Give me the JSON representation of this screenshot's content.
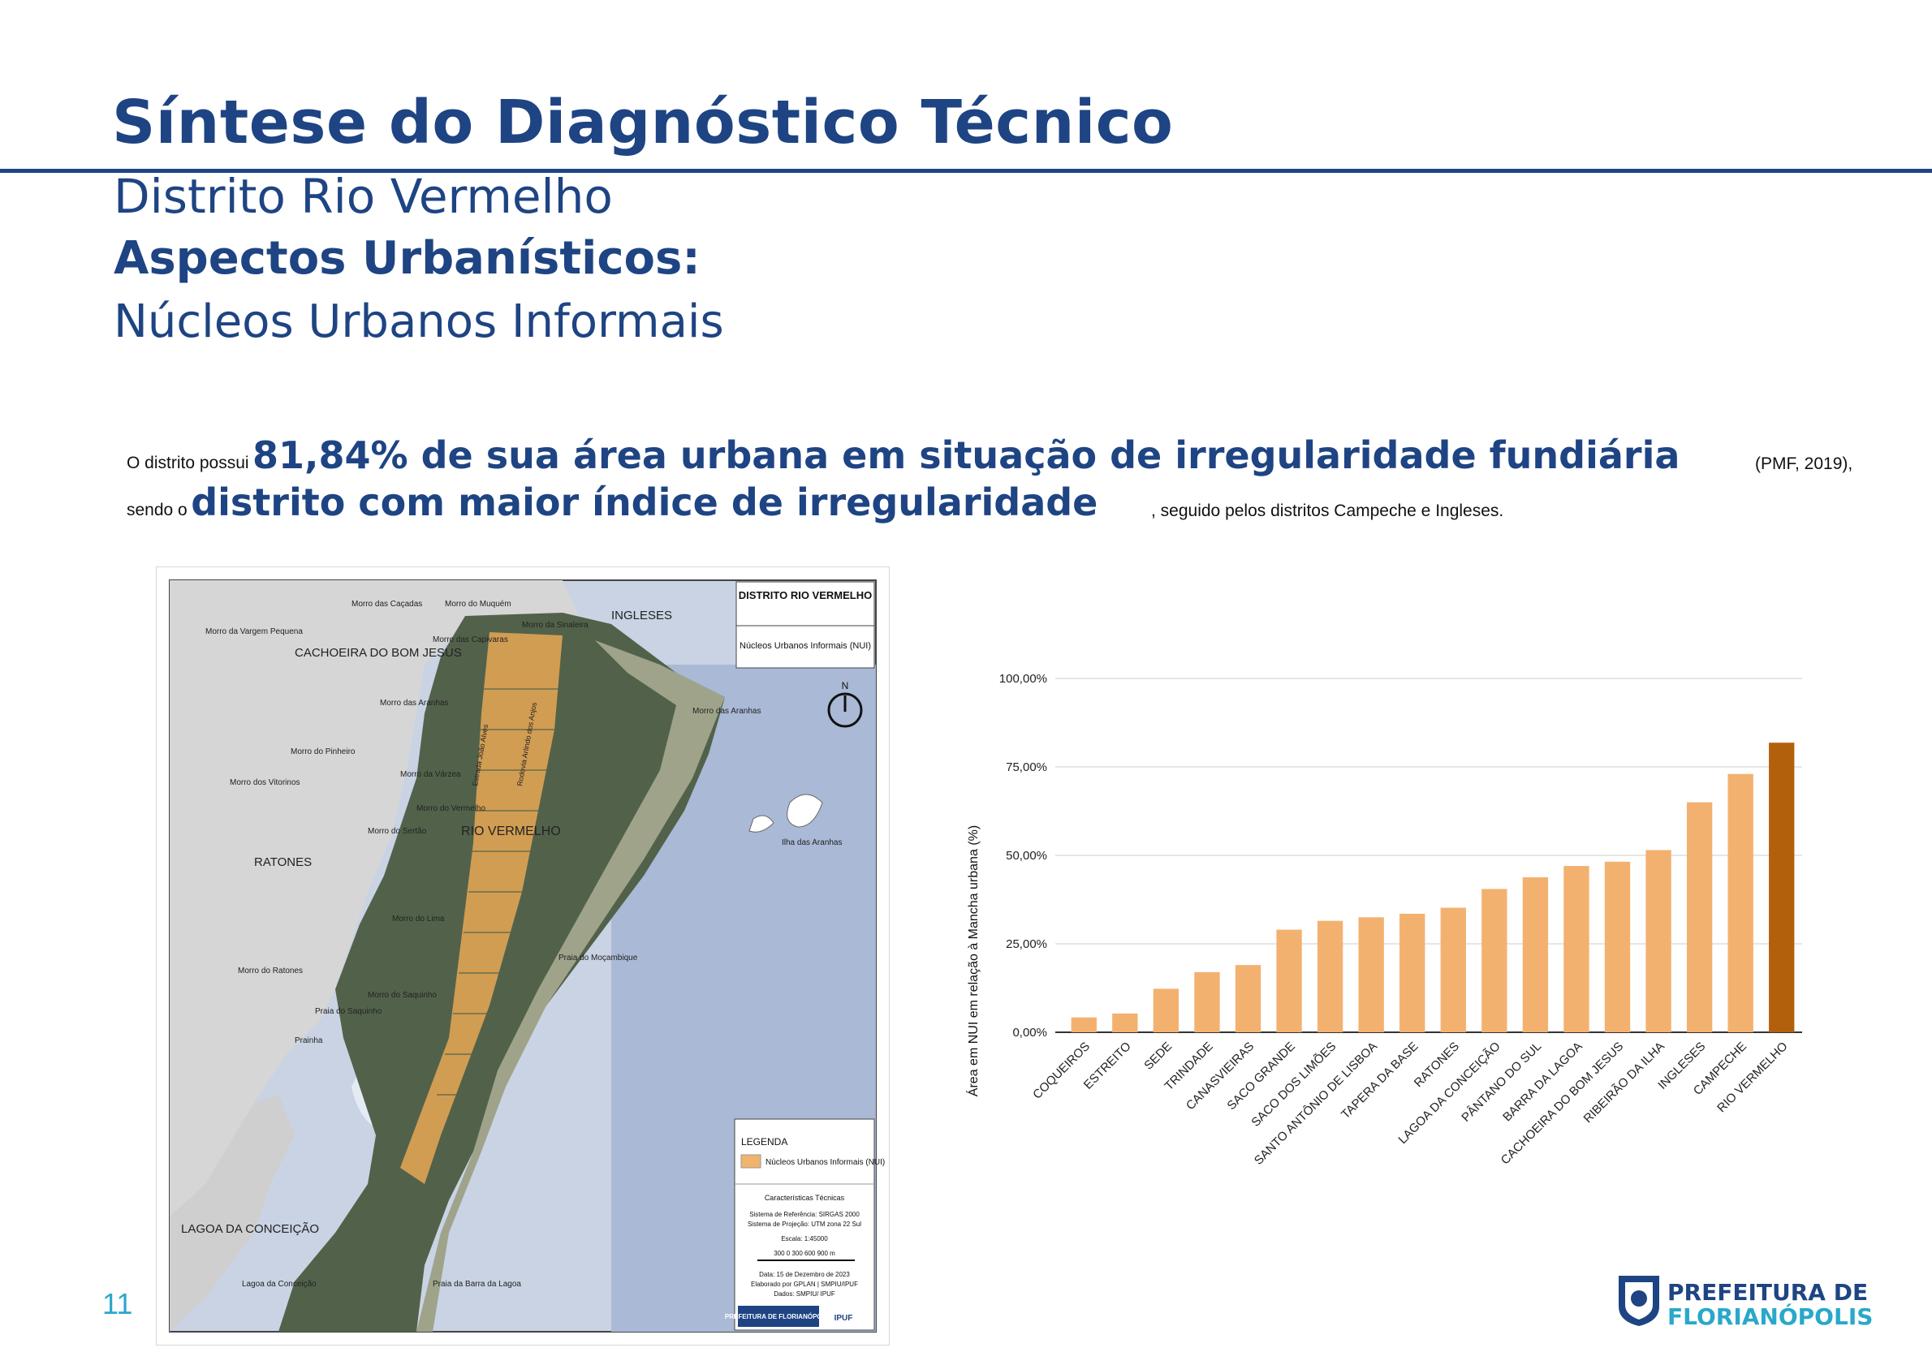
{
  "header": {
    "title": "Síntese do Diagnóstico Técnico",
    "district": "Distrito Rio Vermelho",
    "section": "Aspectos Urbanísticos:",
    "topic": "Núcleos Urbanos Informais"
  },
  "intro": {
    "p1_small": "O distrito possui",
    "p1_big": "81,84% de sua área urbana em situação de irregularidade fundiária",
    "p1_ref": "(PMF, 2019),",
    "p2_small": "sendo o",
    "p2_big": "distrito com maior índice de irregularidade",
    "p2_tail": ", seguido pelos distritos Campeche e Ingleses."
  },
  "map": {
    "panel_title": "DISTRITO RIO VERMELHO",
    "panel_subtitle": "Núcleos Urbanos Informais (NUI)",
    "north": "N",
    "legend_title": "LEGENDA",
    "legend_item": "Núcleos Urbanos Informais (NUI)",
    "tech_title": "Características Técnicas",
    "tech_ref": "Sistema de Referência: SIRGAS 2000",
    "tech_proj": "Sistema de Projeção: UTM zona 22 Sul",
    "tech_scale": "Escala: 1:45000",
    "scale_ticks": "300   0   300  600  900 m",
    "tech_date": "Data: 15 de Dezembro de 2023",
    "tech_by": "Elaborado por GPLAN | SMPIU/IPUF",
    "tech_data": "Dados: SMPIU/ IPUF",
    "logo1": "PREFEITURA DE FLORIANÓPOLIS",
    "logo2": "IPUF",
    "labels": {
      "ingleses": "INGLESES",
      "cachoeira": "CACHOEIRA DO BOM JESUS",
      "rio_vermelho": "RIO VERMELHO",
      "ratones": "RATONES",
      "lagoa": "LAGOA DA CONCEIÇÃO",
      "morro_cacadas": "Morro das Caçadas",
      "morro_muquem": "Morro do Muquém",
      "morro_sinaleira": "Morro da Sinaleira",
      "morro_vargem": "Morro da Vargem Pequena",
      "morro_capivaras": "Morro das Capivaras",
      "morro_aranhas": "Morro das Aranhas",
      "morro_aranhas2": "Morro das Aranhas",
      "morro_pinheiro": "Morro do Pinheiro",
      "morro_vitorinos": "Morro dos Vitorinos",
      "morro_varzea": "Morro da Várzea",
      "morro_vermelho": "Morro do Vermelho",
      "morro_sertao": "Morro do Sertão",
      "morro_ratones": "Morro do Ratones",
      "morro_saquinho": "Morro do Saquinho",
      "morro_lima": "Morro do Lima",
      "praia_saquinho": "Praia do Saquinho",
      "prainha": "Prainha",
      "ilha_aranhas": "Ilha das Aranhas",
      "praia_mocambique": "Praia do Moçambique",
      "lagoa_conceicao": "Lagoa da Conceição",
      "praia_barra": "Praia da Barra da Lagoa",
      "rua1": "Estrada João Alves",
      "rua2": "Rodovia Arlindo dos Anjos"
    }
  },
  "chart_data": {
    "type": "bar",
    "title": "",
    "xlabel": "",
    "ylabel": "Área em NUI em relação à Mancha urbana (%)",
    "ylim": [
      0,
      100
    ],
    "yticks": [
      "0,00%",
      "25,00%",
      "50,00%",
      "75,00%",
      "100,00%"
    ],
    "categories": [
      "COQUEIROS",
      "ESTREITO",
      "SEDE",
      "TRINDADE",
      "CANASVIEIRAS",
      "SACO GRANDE",
      "SACO DOS LIMÕES",
      "SANTO ANTÔNIO DE LISBOA",
      "TAPERA DA BASE",
      "RATONES",
      "LAGOA DA CONCEIÇÃO",
      "PÂNTANO DO SUL",
      "BARRA DA LAGOA",
      "CACHOEIRA DO BOM JESUS",
      "RIBEIRÃO DA ILHA",
      "INGLESES",
      "CAMPECHE",
      "RIO VERMELHO"
    ],
    "values": [
      4.2,
      5.3,
      12.3,
      17.0,
      19.0,
      29.0,
      31.5,
      32.5,
      33.5,
      35.2,
      40.5,
      43.8,
      47.0,
      48.2,
      51.5,
      65.0,
      73.0,
      81.84
    ],
    "colors": {
      "default": "#f3b170",
      "highlight": "#b3600c",
      "grid": "#cccccc"
    },
    "highlight_index": 17
  },
  "page": {
    "number": "11",
    "logo_line1": "PREFEITURA DE",
    "logo_line2": "FLORIANÓPOLIS"
  }
}
